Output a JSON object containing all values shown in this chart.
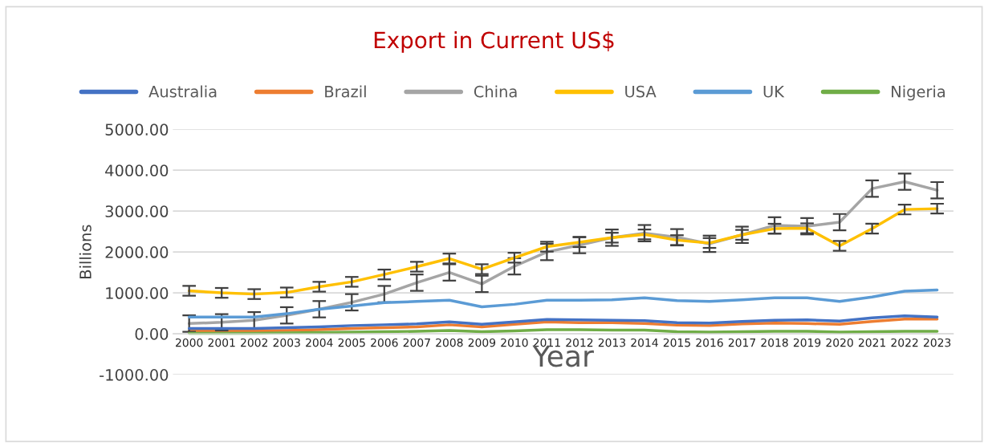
{
  "chart_data": {
    "type": "line",
    "title": "Export in Current US$",
    "xlabel": "Year",
    "ylabel": "Billions",
    "categories": [
      "2000",
      "2001",
      "2002",
      "2003",
      "2004",
      "2005",
      "2006",
      "2007",
      "2008",
      "2009",
      "2010",
      "2011",
      "2012",
      "2013",
      "2014",
      "2015",
      "2016",
      "2017",
      "2018",
      "2019",
      "2020",
      "2021",
      "2022",
      "2023"
    ],
    "series": [
      {
        "name": "Australia",
        "color": "#4472c4",
        "values": [
          130,
          130,
          130,
          150,
          170,
          200,
          220,
          240,
          290,
          230,
          290,
          350,
          340,
          330,
          320,
          270,
          260,
          300,
          330,
          340,
          310,
          390,
          440,
          410
        ]
      },
      {
        "name": "Brazil",
        "color": "#ed7d31",
        "values": [
          70,
          70,
          70,
          80,
          100,
          130,
          150,
          170,
          220,
          170,
          230,
          290,
          270,
          270,
          250,
          210,
          200,
          240,
          260,
          250,
          230,
          300,
          360,
          360
        ]
      },
      {
        "name": "China",
        "color": "#a5a5a5",
        "values": [
          250,
          280,
          330,
          450,
          600,
          770,
          970,
          1250,
          1500,
          1220,
          1650,
          2000,
          2170,
          2350,
          2460,
          2360,
          2200,
          2420,
          2650,
          2630,
          2730,
          3550,
          3720,
          3510
        ],
        "errors": [
          200,
          200,
          200,
          200,
          200,
          200,
          200,
          200,
          200,
          200,
          200,
          200,
          200,
          200,
          200,
          200,
          200,
          200,
          200,
          200,
          200,
          200,
          200,
          200
        ]
      },
      {
        "name": "USA",
        "color": "#ffc000",
        "values": [
          1050,
          1000,
          970,
          1010,
          1150,
          1270,
          1450,
          1640,
          1840,
          1580,
          1860,
          2130,
          2240,
          2350,
          2430,
          2290,
          2220,
          2420,
          2570,
          2580,
          2150,
          2570,
          3040,
          3060
        ],
        "errors": [
          120,
          120,
          120,
          120,
          120,
          120,
          120,
          120,
          120,
          120,
          120,
          120,
          120,
          120,
          120,
          120,
          120,
          120,
          120,
          120,
          120,
          120,
          120,
          120
        ]
      },
      {
        "name": "UK",
        "color": "#5b9bd5",
        "values": [
          410,
          410,
          410,
          490,
          600,
          680,
          760,
          790,
          820,
          660,
          720,
          820,
          820,
          830,
          880,
          810,
          790,
          830,
          880,
          880,
          790,
          900,
          1040,
          1070
        ]
      },
      {
        "name": "Nigeria",
        "color": "#70ad47",
        "values": [
          10,
          10,
          10,
          20,
          30,
          40,
          50,
          60,
          80,
          50,
          70,
          100,
          100,
          90,
          90,
          50,
          40,
          50,
          60,
          60,
          40,
          50,
          60,
          60
        ]
      }
    ],
    "ylim": [
      -1000,
      5000
    ],
    "yticks": [
      {
        "value": -1000,
        "label": "-1000.00"
      },
      {
        "value": 0,
        "label": "0.00"
      },
      {
        "value": 1000,
        "label": "1000.00"
      },
      {
        "value": 2000,
        "label": "2000.00"
      },
      {
        "value": 3000,
        "label": "3000.00"
      },
      {
        "value": 4000,
        "label": "4000.00"
      },
      {
        "value": 5000,
        "label": "5000.00"
      }
    ],
    "grid": "y",
    "legend": "top",
    "marker": "none",
    "line_style": "solid"
  }
}
